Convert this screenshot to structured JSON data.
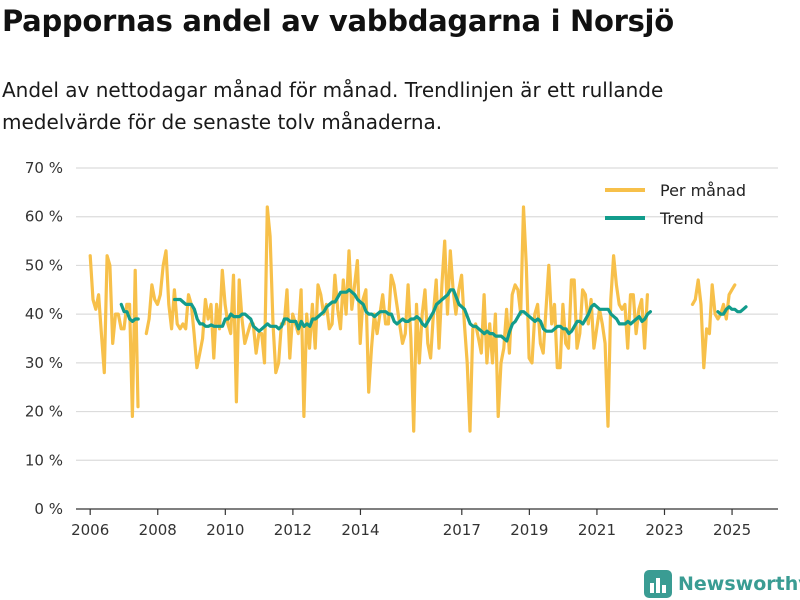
{
  "header": {
    "title": "Pappornas andel av vabbdagarna i Norsjö",
    "subtitle": "Andel av nettodagar månad för månad. Trendlinjen är ett rullande medelvärde för de senaste tolv månaderna."
  },
  "brand": {
    "name": "Newsworthy",
    "color": "#3a9c93"
  },
  "colors": {
    "monthly": "#f7c04a",
    "trend": "#129c8c",
    "grid": "#dcdcdc",
    "axis": "#333333"
  },
  "chart_data": {
    "type": "line",
    "title": "Pappornas andel av vabbdagarna i Norsjö",
    "xlabel": "",
    "ylabel": "",
    "ylim": [
      0,
      70
    ],
    "y_ticks": [
      0,
      10,
      20,
      30,
      40,
      50,
      60,
      70
    ],
    "y_tick_labels": [
      "0 %",
      "10 %",
      "20 %",
      "30 %",
      "40 %",
      "50 %",
      "60 %",
      "70 %"
    ],
    "x_ticks": [
      2006,
      2008,
      2010,
      2012,
      2014,
      2017,
      2019,
      2021,
      2023,
      2025
    ],
    "x_tick_labels": [
      "2006",
      "2008",
      "2010",
      "2012",
      "2014",
      "2017",
      "2019",
      "2021",
      "2023",
      "2025"
    ],
    "x_range": [
      2005.58,
      2026.36
    ],
    "legend": {
      "position": "top-right",
      "entries": [
        "Per månad",
        "Trend"
      ]
    },
    "series": [
      {
        "name": "Per månad",
        "color": "#f7c04a",
        "segments": [
          {
            "start": 2006.0,
            "values": [
              52,
              43,
              41,
              44,
              36,
              28,
              52,
              50,
              34,
              40,
              40,
              37,
              37,
              42,
              42,
              19,
              49,
              21
            ]
          },
          {
            "start": 2007.66,
            "values": [
              36,
              39,
              46,
              43,
              42,
              44,
              50,
              53,
              42,
              37,
              45,
              38,
              37,
              38,
              37,
              44,
              42,
              36,
              29,
              32,
              35,
              43,
              39,
              42,
              31,
              42,
              37,
              49,
              42,
              38,
              36,
              48,
              22,
              47,
              39,
              34,
              36,
              38,
              38,
              32,
              36,
              36,
              30,
              62,
              56,
              38,
              28,
              30,
              38,
              38,
              45,
              31,
              40,
              38,
              36,
              45,
              19,
              40,
              33,
              42,
              33,
              46,
              44,
              40,
              42,
              37,
              38,
              48,
              41,
              37,
              47,
              40,
              53,
              41,
              46,
              51,
              34,
              43,
              45,
              24,
              33,
              40,
              36,
              40,
              44,
              38,
              38,
              48,
              46,
              42,
              38,
              34,
              36,
              46,
              35,
              16,
              42,
              30,
              40,
              45,
              34,
              31,
              40,
              47,
              33,
              46,
              55,
              40,
              53,
              45,
              40,
              45,
              48,
              38,
              30,
              16,
              37,
              38,
              35,
              32,
              44,
              30,
              38,
              30,
              40,
              19,
              30,
              33,
              41,
              32,
              44,
              46,
              45,
              40,
              62,
              50,
              31,
              30,
              40,
              42,
              34,
              32,
              41,
              50,
              38,
              42,
              29,
              29,
              42,
              34,
              33,
              47,
              47,
              33,
              36,
              45,
              44,
              38,
              43,
              33,
              37,
              41,
              38,
              34,
              17,
              43,
              52,
              46,
              42,
              41,
              42,
              33,
              44,
              44,
              36,
              41,
              43,
              33,
              44
            ]
          },
          {
            "start": 2023.83,
            "values": [
              42,
              43,
              47,
              42,
              29,
              37,
              36,
              46,
              40,
              39,
              40,
              42,
              39,
              44,
              45,
              46
            ]
          }
        ]
      },
      {
        "name": "Trend",
        "color": "#129c8c",
        "segments": [
          {
            "start": 2006.92,
            "values": [
              42,
              40.5,
              40.5,
              39,
              38.5,
              39,
              39
            ]
          },
          {
            "start": 2008.5,
            "values": [
              43,
              43,
              43,
              42.5,
              42,
              42,
              42,
              41,
              39,
              38,
              38,
              37.5,
              37.5,
              37.8,
              37.5,
              37.5,
              37.5,
              37.5,
              39,
              39,
              40,
              39.5,
              39.5,
              39.5,
              40,
              40,
              39.5,
              39,
              37.5,
              37,
              36.5,
              37,
              37.5,
              38,
              37.5,
              37.5,
              37.5,
              37,
              37.5,
              39,
              39,
              38.5,
              38.5,
              38.5,
              37,
              38.5,
              37.5,
              38,
              37.5,
              39,
              39,
              39.5,
              40,
              40.5,
              41.5,
              42,
              42.5,
              42.5,
              43.5,
              44.5,
              44.5,
              44.5,
              45,
              44.5,
              44,
              43,
              42.5,
              42,
              40.5,
              40,
              40,
              39.5,
              40,
              40.5,
              40.5,
              40.5,
              40,
              40,
              38.5,
              38,
              38.5,
              39,
              38.5,
              38.5,
              39,
              39,
              39.5,
              39,
              38,
              37.5,
              38.5,
              39.5,
              40.5,
              42,
              42.5,
              43,
              43.5,
              44,
              45,
              45,
              43.5,
              42,
              41.5,
              41,
              39.5,
              38,
              37.5,
              37.5,
              37,
              36.5,
              36,
              36.5,
              36,
              36,
              35.5,
              35.5,
              35.5,
              35,
              34.5,
              36.5,
              38,
              38.5,
              39.5,
              40.5,
              40.5,
              40,
              39.5,
              39,
              38.5,
              39,
              38.5,
              37,
              36.5,
              36.5,
              36.5,
              37,
              37.5,
              37.5,
              37,
              37,
              36,
              36.5,
              37.5,
              38.5,
              38.5,
              38,
              39,
              40,
              41.5,
              42,
              41.5,
              41,
              41,
              41,
              41,
              40,
              39.5,
              39,
              38,
              38,
              38,
              38.5,
              38,
              38.5,
              39,
              39.5,
              38.5,
              39,
              40,
              40.5
            ]
          },
          {
            "start": 2024.58,
            "values": [
              40.5,
              40,
              40,
              41,
              41.5,
              41,
              41,
              40.5,
              40.5,
              41,
              41.5
            ]
          }
        ]
      }
    ]
  }
}
